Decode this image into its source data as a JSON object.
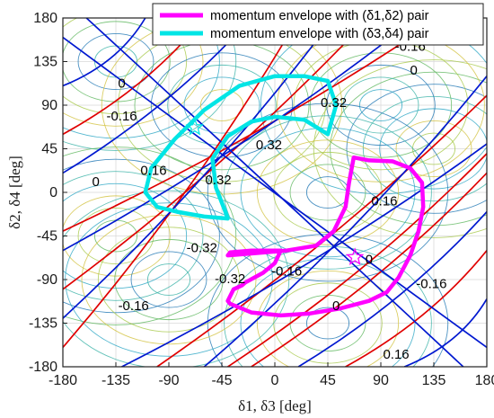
{
  "chart_data": {
    "type": "line",
    "title": "",
    "xlabel": "δ1, δ3 [deg]",
    "ylabel": "δ2, δ4 [deg]",
    "xlim": [
      -180,
      180
    ],
    "ylim": [
      -180,
      180
    ],
    "xticks": [
      -180,
      -135,
      -90,
      -45,
      0,
      45,
      90,
      135,
      180
    ],
    "yticks": [
      -180,
      -135,
      -90,
      -45,
      0,
      45,
      90,
      135,
      180
    ],
    "grid": true,
    "legend_position": "top-right",
    "legend": [
      {
        "label": "momentum envelope with (δ1,δ2) pair",
        "color": "#ff00ff"
      },
      {
        "label": "momentum envelope with (δ3,δ4) pair",
        "color": "#00e5e5"
      }
    ],
    "contour_labels": [
      {
        "text": "0",
        "x": -152,
        "y": 10
      },
      {
        "text": "0.16",
        "x": -103,
        "y": 22
      },
      {
        "text": "0.32",
        "x": -48,
        "y": 12
      },
      {
        "text": "0.32",
        "x": -5,
        "y": 48
      },
      {
        "text": "-0.16",
        "x": -130,
        "y": 78
      },
      {
        "text": "0",
        "x": -130,
        "y": 112
      },
      {
        "text": "0.32",
        "x": 50,
        "y": 92
      },
      {
        "text": "-0.16",
        "x": 115,
        "y": 150
      },
      {
        "text": "0",
        "x": 118,
        "y": 125
      },
      {
        "text": "0.16",
        "x": 93,
        "y": -10
      },
      {
        "text": "-0.32",
        "x": -62,
        "y": -58
      },
      {
        "text": "-0.32",
        "x": -38,
        "y": -90
      },
      {
        "text": "-0.16",
        "x": 10,
        "y": -82
      },
      {
        "text": "0",
        "x": 80,
        "y": -70
      },
      {
        "text": "0",
        "x": 52,
        "y": -118
      },
      {
        "text": "-0.16",
        "x": -120,
        "y": -118
      },
      {
        "text": "-0.16",
        "x": 133,
        "y": -95
      },
      {
        "text": "0.16",
        "x": 103,
        "y": -168
      }
    ],
    "series": [
      {
        "name": "momentum envelope with (δ1,δ2) pair",
        "color": "#ff00ff",
        "points": [
          [
            67,
            36
          ],
          [
            80,
            33
          ],
          [
            100,
            32
          ],
          [
            115,
            25
          ],
          [
            125,
            10
          ],
          [
            126,
            -15
          ],
          [
            122,
            -40
          ],
          [
            115,
            -65
          ],
          [
            105,
            -88
          ],
          [
            95,
            -103
          ],
          [
            80,
            -112
          ],
          [
            55,
            -120
          ],
          [
            30,
            -125
          ],
          [
            5,
            -127
          ],
          [
            -20,
            -124
          ],
          [
            -38,
            -115
          ],
          [
            -40,
            -112
          ],
          [
            -35,
            -100
          ],
          [
            -28,
            -96
          ],
          [
            -25,
            -93
          ],
          [
            -10,
            -83
          ],
          [
            0,
            -73
          ],
          [
            5,
            -60
          ],
          [
            -20,
            -60
          ],
          [
            -38,
            -62
          ],
          [
            -40,
            -65
          ],
          [
            10,
            -60
          ],
          [
            35,
            -55
          ],
          [
            50,
            -40
          ],
          [
            60,
            -15
          ],
          [
            63,
            10
          ],
          [
            67,
            36
          ]
        ]
      },
      {
        "name": "momentum envelope with (δ3,δ4) pair",
        "color": "#00e5e5",
        "points": [
          [
            -40,
            -27
          ],
          [
            -60,
            -25
          ],
          [
            -83,
            -20
          ],
          [
            -100,
            -15
          ],
          [
            -110,
            0
          ],
          [
            -105,
            25
          ],
          [
            -85,
            55
          ],
          [
            -60,
            85
          ],
          [
            -30,
            110
          ],
          [
            0,
            120
          ],
          [
            25,
            120
          ],
          [
            45,
            115
          ],
          [
            52,
            90
          ],
          [
            45,
            60
          ],
          [
            25,
            75
          ],
          [
            0,
            78
          ],
          [
            -20,
            73
          ],
          [
            -40,
            58
          ],
          [
            -53,
            35
          ],
          [
            -50,
            5
          ],
          [
            -42,
            -20
          ],
          [
            -40,
            -27
          ]
        ]
      }
    ],
    "markers": [
      {
        "name": "cyan-star",
        "x": -68,
        "y": 67,
        "color": "#00e5e5"
      },
      {
        "name": "magenta-star",
        "x": 68,
        "y": -67,
        "color": "#ff00ff"
      }
    ]
  }
}
